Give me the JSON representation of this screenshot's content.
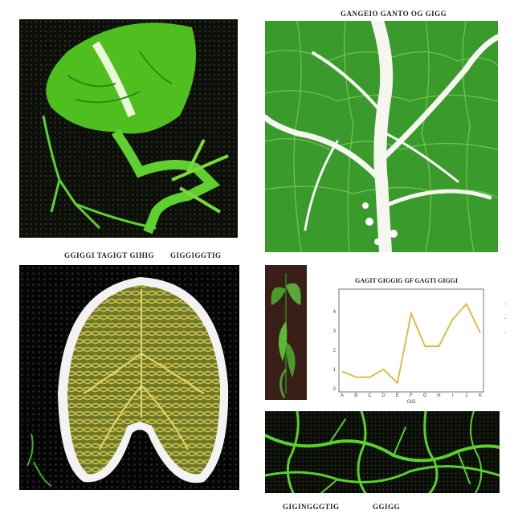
{
  "captions": {
    "top_right": "GANGEIO GANTO OG GIGG",
    "mid_left_a": "GGIGGI TAGIGT GIHIG",
    "mid_left_b": "GIGGIGGTIG",
    "bottom_left": "GIGINGGGTIG",
    "bottom_right": "GGIGG"
  },
  "colors": {
    "leaf_green": "#4fbf1f",
    "bright_green": "#7ad83a",
    "dark_bg": "#0d0f0a",
    "gold": "#c9a43a",
    "line": "#e0b63a"
  },
  "chart_data": {
    "type": "line",
    "title": "GAGIT GIGGIG GF GAGTI GIGGI",
    "x": [
      "A",
      "B",
      "C",
      "D",
      "E",
      "F",
      "G",
      "H",
      "I",
      "J",
      "K"
    ],
    "series": [
      {
        "values": [
          0.9,
          0.6,
          0.6,
          1.0,
          0.3,
          3.9,
          2.2,
          2.2,
          3.6,
          4.4,
          2.9
        ]
      }
    ],
    "ylim": [
      0,
      5
    ],
    "xlabel": "GIG",
    "ylabel": "",
    "yticks": [
      "0",
      "1",
      "2",
      "3",
      "4"
    ],
    "grid": false
  }
}
